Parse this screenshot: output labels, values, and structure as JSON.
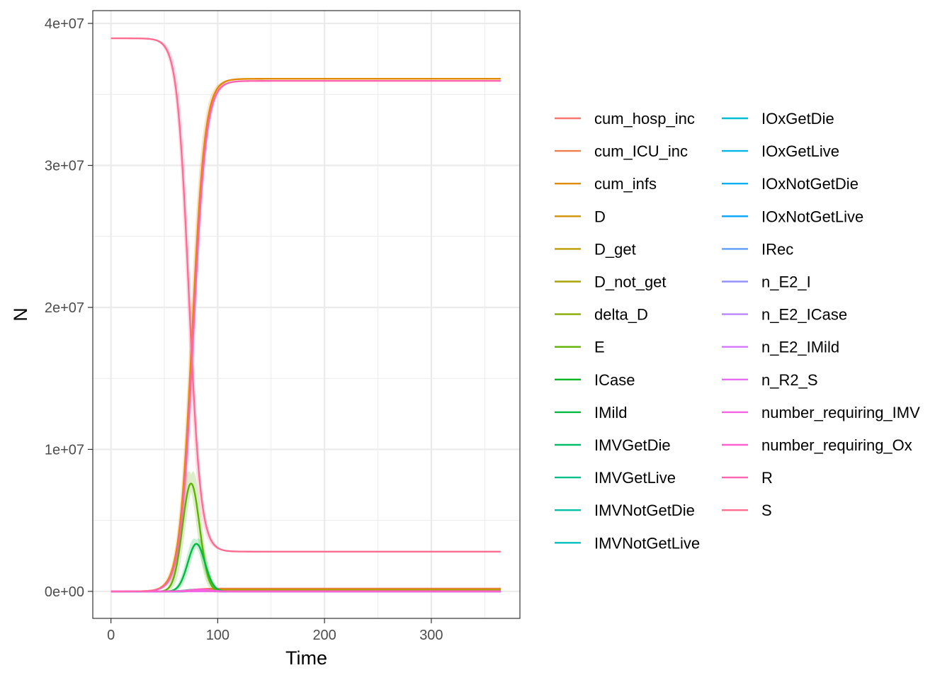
{
  "chart_data": {
    "type": "line",
    "xlabel": "Time",
    "ylabel": "N",
    "xlim": [
      -17,
      383
    ],
    "ylim": [
      -1900000,
      40900000
    ],
    "x_ticks": [
      0,
      100,
      200,
      300
    ],
    "x_tick_labels": [
      "0",
      "100",
      "200",
      "300"
    ],
    "y_ticks": [
      0,
      10000000,
      20000000,
      30000000,
      40000000
    ],
    "y_tick_labels": [
      "0e+00",
      "1e+07",
      "2e+07",
      "3e+07",
      "4e+07"
    ],
    "grid": true,
    "legend_position": "right",
    "legend_columns": 2,
    "series": [
      {
        "name": "cum_hosp_inc",
        "color": "#F8766D",
        "curve": {
          "kind": "sigmoid",
          "start": 0,
          "end": 200000,
          "mid": 76,
          "width": 6
        }
      },
      {
        "name": "cum_ICU_inc",
        "color": "#EF7F49",
        "curve": {
          "kind": "sigmoid",
          "start": 0,
          "end": 50000,
          "mid": 78,
          "width": 6
        }
      },
      {
        "name": "cum_infs",
        "color": "#E18A00",
        "curve": {
          "kind": "sigmoid",
          "start": 0,
          "end": 36100000,
          "mid": 76,
          "width": 6
        }
      },
      {
        "name": "D",
        "color": "#D19200",
        "curve": {
          "kind": "sigmoid",
          "start": 0,
          "end": 150000,
          "mid": 82,
          "width": 6
        }
      },
      {
        "name": "D_get",
        "color": "#BD9C00",
        "curve": {
          "kind": "sigmoid",
          "start": 0,
          "end": 100000,
          "mid": 82,
          "width": 6
        }
      },
      {
        "name": "D_not_get",
        "color": "#A5A400",
        "curve": {
          "kind": "sigmoid",
          "start": 0,
          "end": 60000,
          "mid": 82,
          "width": 6
        }
      },
      {
        "name": "delta_D",
        "color": "#88AC00",
        "curve": {
          "kind": "gaussian",
          "peak": 8000,
          "mid": 82,
          "width": 9
        }
      },
      {
        "name": "E",
        "color": "#5EB300",
        "curve": {
          "kind": "gaussian",
          "peak": 7600000,
          "mid": 75,
          "width": 8
        }
      },
      {
        "name": "ICase",
        "color": "#00B81F",
        "curve": {
          "kind": "gaussian",
          "peak": 120000,
          "mid": 79,
          "width": 9
        }
      },
      {
        "name": "IMild",
        "color": "#00BB3F",
        "curve": {
          "kind": "gaussian",
          "peak": 3350000,
          "mid": 80,
          "width": 8
        }
      },
      {
        "name": "IMVGetDie",
        "color": "#00BE6C",
        "curve": {
          "kind": "gaussian",
          "peak": 15000,
          "mid": 86,
          "width": 9
        }
      },
      {
        "name": "IMVGetLive",
        "color": "#00C08B",
        "curve": {
          "kind": "gaussian",
          "peak": 12000,
          "mid": 86,
          "width": 9
        }
      },
      {
        "name": "IMVNotGetDie",
        "color": "#00C1A7",
        "curve": {
          "kind": "gaussian",
          "peak": 20000,
          "mid": 86,
          "width": 9
        }
      },
      {
        "name": "IMVNotGetLive",
        "color": "#00C0BF",
        "curve": {
          "kind": "gaussian",
          "peak": 8000,
          "mid": 86,
          "width": 9
        }
      },
      {
        "name": "IOxGetDie",
        "color": "#00BDD4",
        "curve": {
          "kind": "gaussian",
          "peak": 20000,
          "mid": 84,
          "width": 9
        }
      },
      {
        "name": "IOxGetLive",
        "color": "#00B8E7",
        "curve": {
          "kind": "gaussian",
          "peak": 40000,
          "mid": 84,
          "width": 9
        }
      },
      {
        "name": "IOxNotGetDie",
        "color": "#00B0F6",
        "curve": {
          "kind": "gaussian",
          "peak": 30000,
          "mid": 84,
          "width": 9
        }
      },
      {
        "name": "IOxNotGetLive",
        "color": "#00A5FF",
        "curve": {
          "kind": "gaussian",
          "peak": 25000,
          "mid": 84,
          "width": 9
        }
      },
      {
        "name": "IRec",
        "color": "#619CFF",
        "curve": {
          "kind": "gaussian",
          "peak": 30000,
          "mid": 86,
          "width": 9
        }
      },
      {
        "name": "n_E2_I",
        "color": "#9590FF",
        "curve": {
          "kind": "gaussian",
          "peak": 90000,
          "mid": 78,
          "width": 9
        }
      },
      {
        "name": "n_E2_ICase",
        "color": "#B983FF",
        "curve": {
          "kind": "gaussian",
          "peak": 20000,
          "mid": 78,
          "width": 9
        }
      },
      {
        "name": "n_E2_IMild",
        "color": "#D575FE",
        "curve": {
          "kind": "gaussian",
          "peak": 70000,
          "mid": 78,
          "width": 9
        }
      },
      {
        "name": "n_R2_S",
        "color": "#E76BF3",
        "curve": {
          "kind": "gaussian",
          "peak": 0,
          "mid": 80,
          "width": 9
        }
      },
      {
        "name": "number_requiring_IMV",
        "color": "#F564E3",
        "curve": {
          "kind": "gaussian",
          "peak": 50000,
          "mid": 86,
          "width": 9
        }
      },
      {
        "name": "number_requiring_Ox",
        "color": "#FD61D1",
        "curve": {
          "kind": "gaussian",
          "peak": 150000,
          "mid": 84,
          "width": 9
        }
      },
      {
        "name": "R",
        "color": "#FF64B0",
        "curve": {
          "kind": "sigmoid",
          "start": 0,
          "end": 35950000,
          "mid": 77,
          "width": 6
        }
      },
      {
        "name": "S",
        "color": "#FF6C91",
        "curve": {
          "kind": "sigmoid",
          "start": 38950000,
          "end": 2800000,
          "mid": 73,
          "width": 5.5
        }
      }
    ]
  }
}
